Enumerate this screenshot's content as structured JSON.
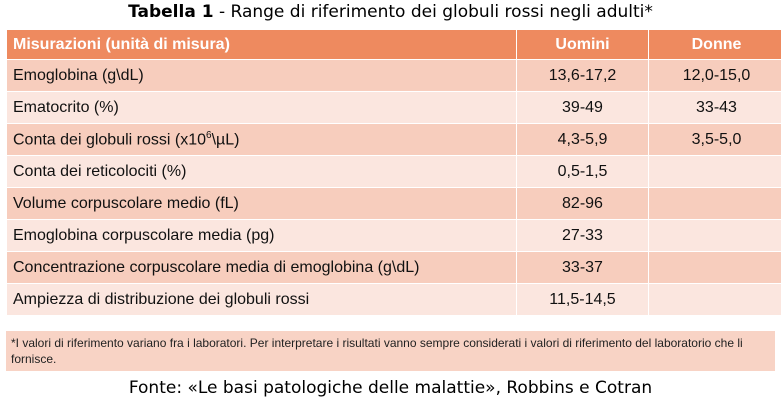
{
  "title": {
    "number": "Tabella 1",
    "separator": " - ",
    "text": "Range di riferimento dei globuli rossi negli adulti*"
  },
  "table": {
    "headers": [
      "Misurazioni (unità di misura)",
      "Uomini",
      "Donne"
    ],
    "rows": [
      {
        "label": "Emoglobina (g\\dL)",
        "uomini": "13,6-17,2",
        "donne": "12,0-15,0"
      },
      {
        "label": "Ematocrito (%)",
        "uomini": "39-49",
        "donne": "33-43"
      },
      {
        "label_pre": "Conta dei globuli rossi (x10",
        "label_sup": "6",
        "label_post": "\\µL)",
        "uomini": "4,3-5,9",
        "donne": "3,5-5,0"
      },
      {
        "label": "Conta dei reticolociti (%)",
        "uomini": "0,5-1,5",
        "donne": ""
      },
      {
        "label": "Volume corpuscolare medio (fL)",
        "uomini": "82-96",
        "donne": ""
      },
      {
        "label": "Emoglobina corpuscolare media (pg)",
        "uomini": "27-33",
        "donne": ""
      },
      {
        "label": "Concentrazione corpuscolare media di emoglobina (g\\dL)",
        "uomini": "33-37",
        "donne": ""
      },
      {
        "label": "Ampiezza di distribuzione dei globuli rossi",
        "uomini": "11,5-14,5",
        "donne": ""
      }
    ]
  },
  "note": "*I valori di riferimento variano fra i laboratori. Per interpretare i risultati vanno sempre considerati i valori di riferimento del laboratorio che li fornisce.",
  "source": "Fonte: «Le basi patologiche delle malattie», Robbins e Cotran"
}
